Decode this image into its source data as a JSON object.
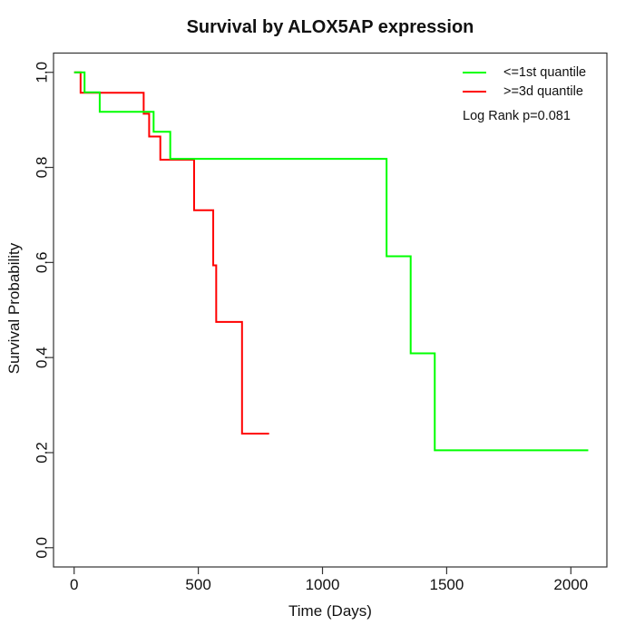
{
  "title": "Survival by ALOX5AP expression",
  "x_axis": {
    "label": "Time (Days)",
    "ticks": [
      0,
      500,
      1000,
      1500,
      2000
    ]
  },
  "y_axis": {
    "label": "Survival Probability",
    "ticks": [
      0.0,
      0.2,
      0.4,
      0.6,
      0.8,
      1.0
    ]
  },
  "legend": {
    "entries": [
      {
        "label": "<=1st quantile",
        "color": "#00ff00"
      },
      {
        "label": ">=3d quantile",
        "color": "#ff0000"
      }
    ],
    "note": "Log Rank p=0.081"
  },
  "chart_data": {
    "type": "line",
    "subtype": "kaplan-meier-step",
    "title": "Survival by ALOX5AP expression",
    "xlabel": "Time (Days)",
    "ylabel": "Survival Probability",
    "xlim": [
      0,
      2070
    ],
    "ylim": [
      0,
      1
    ],
    "x_ticks": [
      0,
      500,
      1000,
      1500,
      2000
    ],
    "y_ticks": [
      0.0,
      0.2,
      0.4,
      0.6,
      0.8,
      1.0
    ],
    "grid": false,
    "legend_position": "top-right",
    "annotation": "Log Rank p=0.081",
    "series": [
      {
        "name": ">=3d quantile",
        "color": "#ff0000",
        "steps": [
          [
            0,
            1.0
          ],
          [
            26,
            0.957
          ],
          [
            280,
            0.913
          ],
          [
            302,
            0.865
          ],
          [
            347,
            0.816
          ],
          [
            483,
            0.71
          ],
          [
            560,
            0.594
          ],
          [
            572,
            0.475
          ],
          [
            676,
            0.24
          ]
        ],
        "end_time": 785
      },
      {
        "name": "<=1st quantile",
        "color": "#00ff00",
        "steps": [
          [
            0,
            1.0
          ],
          [
            42,
            0.958
          ],
          [
            103,
            0.917
          ],
          [
            320,
            0.875
          ],
          [
            387,
            0.818
          ],
          [
            1258,
            0.613
          ],
          [
            1355,
            0.409
          ],
          [
            1452,
            0.205
          ]
        ],
        "end_time": 2070
      }
    ]
  }
}
